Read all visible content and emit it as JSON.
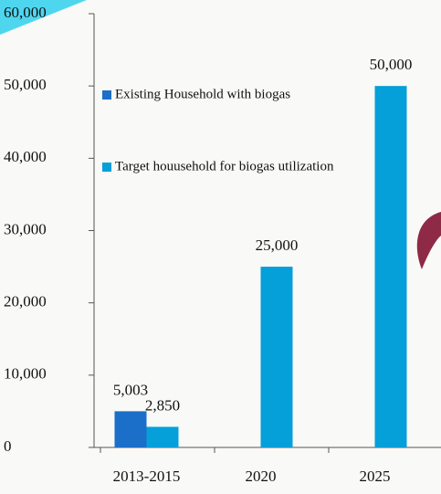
{
  "chart_data": {
    "type": "bar",
    "categories": [
      "2013-2015",
      "2020",
      "2025"
    ],
    "series": [
      {
        "name": "Existing Household with biogas",
        "color": "#1b6fc8",
        "values": [
          5003,
          null,
          null
        ],
        "value_labels": [
          "5,003",
          null,
          null
        ]
      },
      {
        "name": "Target houusehold for biogas utilization",
        "color": "#059fd9",
        "values": [
          2850,
          25000,
          50000
        ],
        "value_labels": [
          "2,850",
          "25,000",
          "50,000"
        ]
      }
    ],
    "ylim": [
      0,
      60000
    ],
    "yticks": [
      0,
      {
        "value": 10000,
        "label": "10,000"
      },
      {
        "value": 20000,
        "label": "20,000"
      },
      {
        "value": 30000,
        "label": "30,000"
      },
      {
        "value": 40000,
        "label": "40,000"
      },
      {
        "value": 50000,
        "label": "50,000"
      },
      {
        "value": 60000,
        "label": "60,000"
      }
    ],
    "legend": "upper left"
  }
}
